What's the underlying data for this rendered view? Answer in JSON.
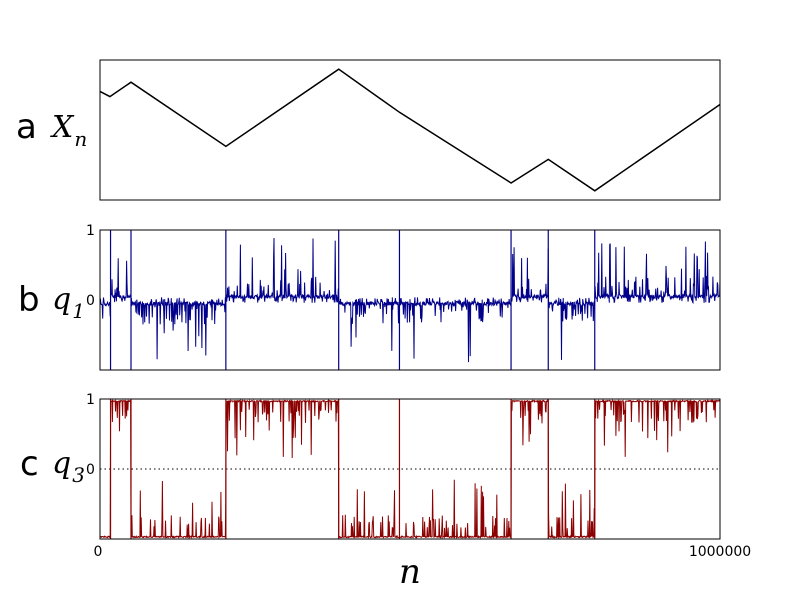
{
  "chart_data": [
    {
      "panel": "a",
      "type": "line",
      "ylabel": "X",
      "ylabel_sub": "n",
      "color": "#000000",
      "x": [
        0,
        16000,
        50000,
        203000,
        385000,
        483000,
        663000,
        723000,
        798000,
        1000000
      ],
      "y": [
        0.83,
        0.79,
        0.9,
        0.41,
        1.0,
        0.67,
        0.13,
        0.31,
        0.07,
        0.73
      ],
      "ylim": [
        0,
        1.07
      ],
      "show_yticks": false,
      "show_xticks": false
    },
    {
      "panel": "b",
      "type": "line",
      "ylabel": "q",
      "ylabel_sub": "1",
      "color": "#00008b",
      "ylim": [
        -1,
        1
      ],
      "yticks": [
        "1",
        "0"
      ],
      "yticks_values": [
        1,
        0
      ],
      "baseline_style": "none",
      "sign_segments": [
        {
          "start": 0,
          "end": 17000,
          "sign": -1
        },
        {
          "start": 17000,
          "end": 50000,
          "sign": 1
        },
        {
          "start": 50000,
          "end": 203000,
          "sign": -1
        },
        {
          "start": 203000,
          "end": 385000,
          "sign": 1
        },
        {
          "start": 385000,
          "end": 663000,
          "sign": -1
        },
        {
          "start": 663000,
          "end": 723000,
          "sign": 1
        },
        {
          "start": 723000,
          "end": 798000,
          "sign": -1
        },
        {
          "start": 798000,
          "end": 1000000,
          "sign": 1
        }
      ],
      "spikes_to_edge": [
        17000,
        50000,
        203000,
        385000,
        483000,
        663000,
        723000,
        798000
      ]
    },
    {
      "panel": "c",
      "type": "line",
      "ylabel": "q",
      "ylabel_sub": "3",
      "color": "#8b0000",
      "ylim": [
        -1,
        1
      ],
      "yticks": [
        "1",
        "0"
      ],
      "yticks_values": [
        1,
        0
      ],
      "baseline_style": "dotted",
      "sign_segments": [
        {
          "start": 0,
          "end": 17000,
          "sign": -1
        },
        {
          "start": 17000,
          "end": 50000,
          "sign": 1
        },
        {
          "start": 50000,
          "end": 203000,
          "sign": -1
        },
        {
          "start": 203000,
          "end": 385000,
          "sign": 1
        },
        {
          "start": 385000,
          "end": 663000,
          "sign": -1
        },
        {
          "start": 663000,
          "end": 723000,
          "sign": 1
        },
        {
          "start": 723000,
          "end": 798000,
          "sign": -1
        },
        {
          "start": 798000,
          "end": 1000000,
          "sign": 1
        }
      ],
      "spikes_to_edge": [
        17000,
        50000,
        203000,
        385000,
        483000,
        663000,
        723000,
        798000
      ]
    }
  ],
  "shared_x": {
    "label": "n",
    "xlim": [
      0,
      1000000
    ],
    "ticks": [
      "0",
      "1000000"
    ],
    "ticks_values": [
      0,
      1000000
    ]
  },
  "panel_letters": [
    "a",
    "b",
    "c"
  ]
}
